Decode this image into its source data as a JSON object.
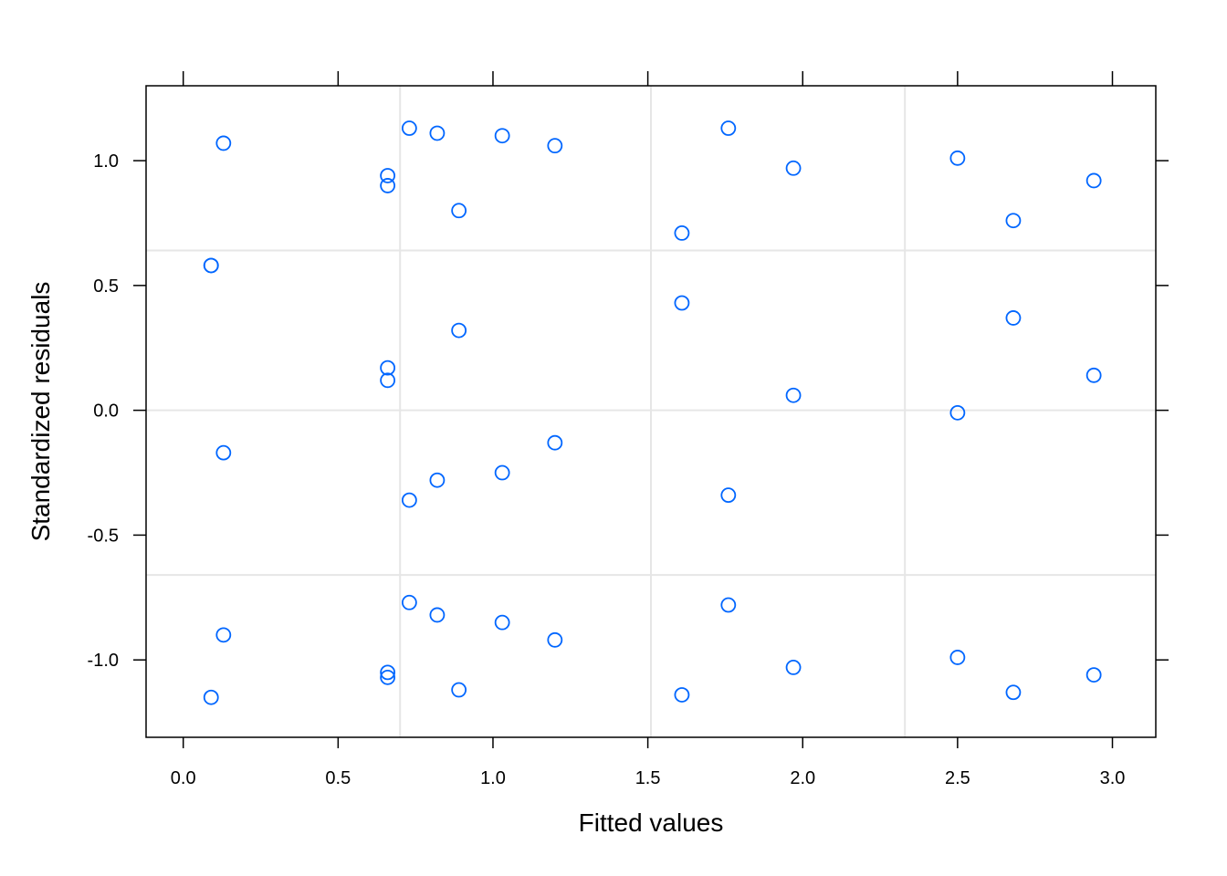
{
  "chart_data": {
    "type": "scatter",
    "xlabel": "Fitted values",
    "ylabel": "Standardized residuals",
    "xlim": [
      -0.12,
      3.14
    ],
    "ylim": [
      -1.31,
      1.3
    ],
    "x_ticks": [
      0.0,
      0.5,
      1.0,
      1.5,
      2.0,
      2.5,
      3.0
    ],
    "x_tick_labels": [
      "0.0",
      "0.5",
      "1.0",
      "1.5",
      "2.0",
      "2.5",
      "3.0"
    ],
    "y_ticks": [
      -1.0,
      -0.5,
      0.0,
      0.5,
      1.0
    ],
    "y_tick_labels": [
      "-1.0",
      "-0.5",
      "0.0",
      "0.5",
      "1.0"
    ],
    "grid": true,
    "ref_lines_x": [
      0.7,
      1.51,
      2.33
    ],
    "ref_lines_y": [
      0.64,
      -0.66
    ],
    "colors": {
      "points": "#0066ff",
      "grid": "#e6e6e6",
      "frame": "#000000"
    },
    "points": [
      {
        "x": 0.09,
        "y": 0.58
      },
      {
        "x": 0.09,
        "y": 0.58
      },
      {
        "x": 0.09,
        "y": -1.15
      },
      {
        "x": 0.13,
        "y": 1.07
      },
      {
        "x": 0.13,
        "y": -0.17
      },
      {
        "x": 0.13,
        "y": -0.9
      },
      {
        "x": 0.66,
        "y": 0.94
      },
      {
        "x": 0.66,
        "y": 0.9
      },
      {
        "x": 0.66,
        "y": 0.17
      },
      {
        "x": 0.66,
        "y": 0.12
      },
      {
        "x": 0.66,
        "y": -1.05
      },
      {
        "x": 0.66,
        "y": -1.07
      },
      {
        "x": 0.73,
        "y": 1.13
      },
      {
        "x": 0.73,
        "y": -0.36
      },
      {
        "x": 0.73,
        "y": -0.77
      },
      {
        "x": 0.82,
        "y": 1.11
      },
      {
        "x": 0.82,
        "y": -0.28
      },
      {
        "x": 0.82,
        "y": -0.82
      },
      {
        "x": 0.89,
        "y": 0.8
      },
      {
        "x": 0.89,
        "y": 0.32
      },
      {
        "x": 0.89,
        "y": -1.12
      },
      {
        "x": 1.03,
        "y": 1.1
      },
      {
        "x": 1.03,
        "y": -0.25
      },
      {
        "x": 1.03,
        "y": -0.85
      },
      {
        "x": 1.2,
        "y": 1.06
      },
      {
        "x": 1.2,
        "y": -0.13
      },
      {
        "x": 1.2,
        "y": -0.92
      },
      {
        "x": 1.61,
        "y": 0.71
      },
      {
        "x": 1.61,
        "y": 0.43
      },
      {
        "x": 1.61,
        "y": -1.14
      },
      {
        "x": 1.76,
        "y": 1.13
      },
      {
        "x": 1.76,
        "y": -0.34
      },
      {
        "x": 1.76,
        "y": -0.78
      },
      {
        "x": 1.97,
        "y": 0.97
      },
      {
        "x": 1.97,
        "y": 0.06
      },
      {
        "x": 1.97,
        "y": -1.03
      },
      {
        "x": 2.5,
        "y": 1.01
      },
      {
        "x": 2.5,
        "y": -0.01
      },
      {
        "x": 2.5,
        "y": -0.99
      },
      {
        "x": 2.68,
        "y": 0.76
      },
      {
        "x": 2.68,
        "y": 0.37
      },
      {
        "x": 2.68,
        "y": -1.13
      },
      {
        "x": 2.94,
        "y": 0.92
      },
      {
        "x": 2.94,
        "y": 0.14
      },
      {
        "x": 2.94,
        "y": -1.06
      }
    ]
  }
}
